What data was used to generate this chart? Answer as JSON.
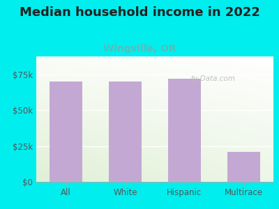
{
  "title": "Median household income in 2022",
  "subtitle": "Wingville, OR",
  "categories": [
    "All",
    "White",
    "Hispanic",
    "Multirace"
  ],
  "values": [
    70000,
    70000,
    72000,
    21000
  ],
  "bar_color": "#C4A8D4",
  "title_fontsize": 13,
  "subtitle_fontsize": 10,
  "subtitle_color": "#5ABBBB",
  "background_color": "#00EEEE",
  "ylim": [
    0,
    87500
  ],
  "yticks": [
    0,
    25000,
    50000,
    75000
  ],
  "ytick_labels": [
    "$0",
    "$25k",
    "$50k",
    "$75k"
  ],
  "watermark": "ty-Data.com",
  "tick_label_color": "#555555",
  "grid_color": "#e0e0e0"
}
